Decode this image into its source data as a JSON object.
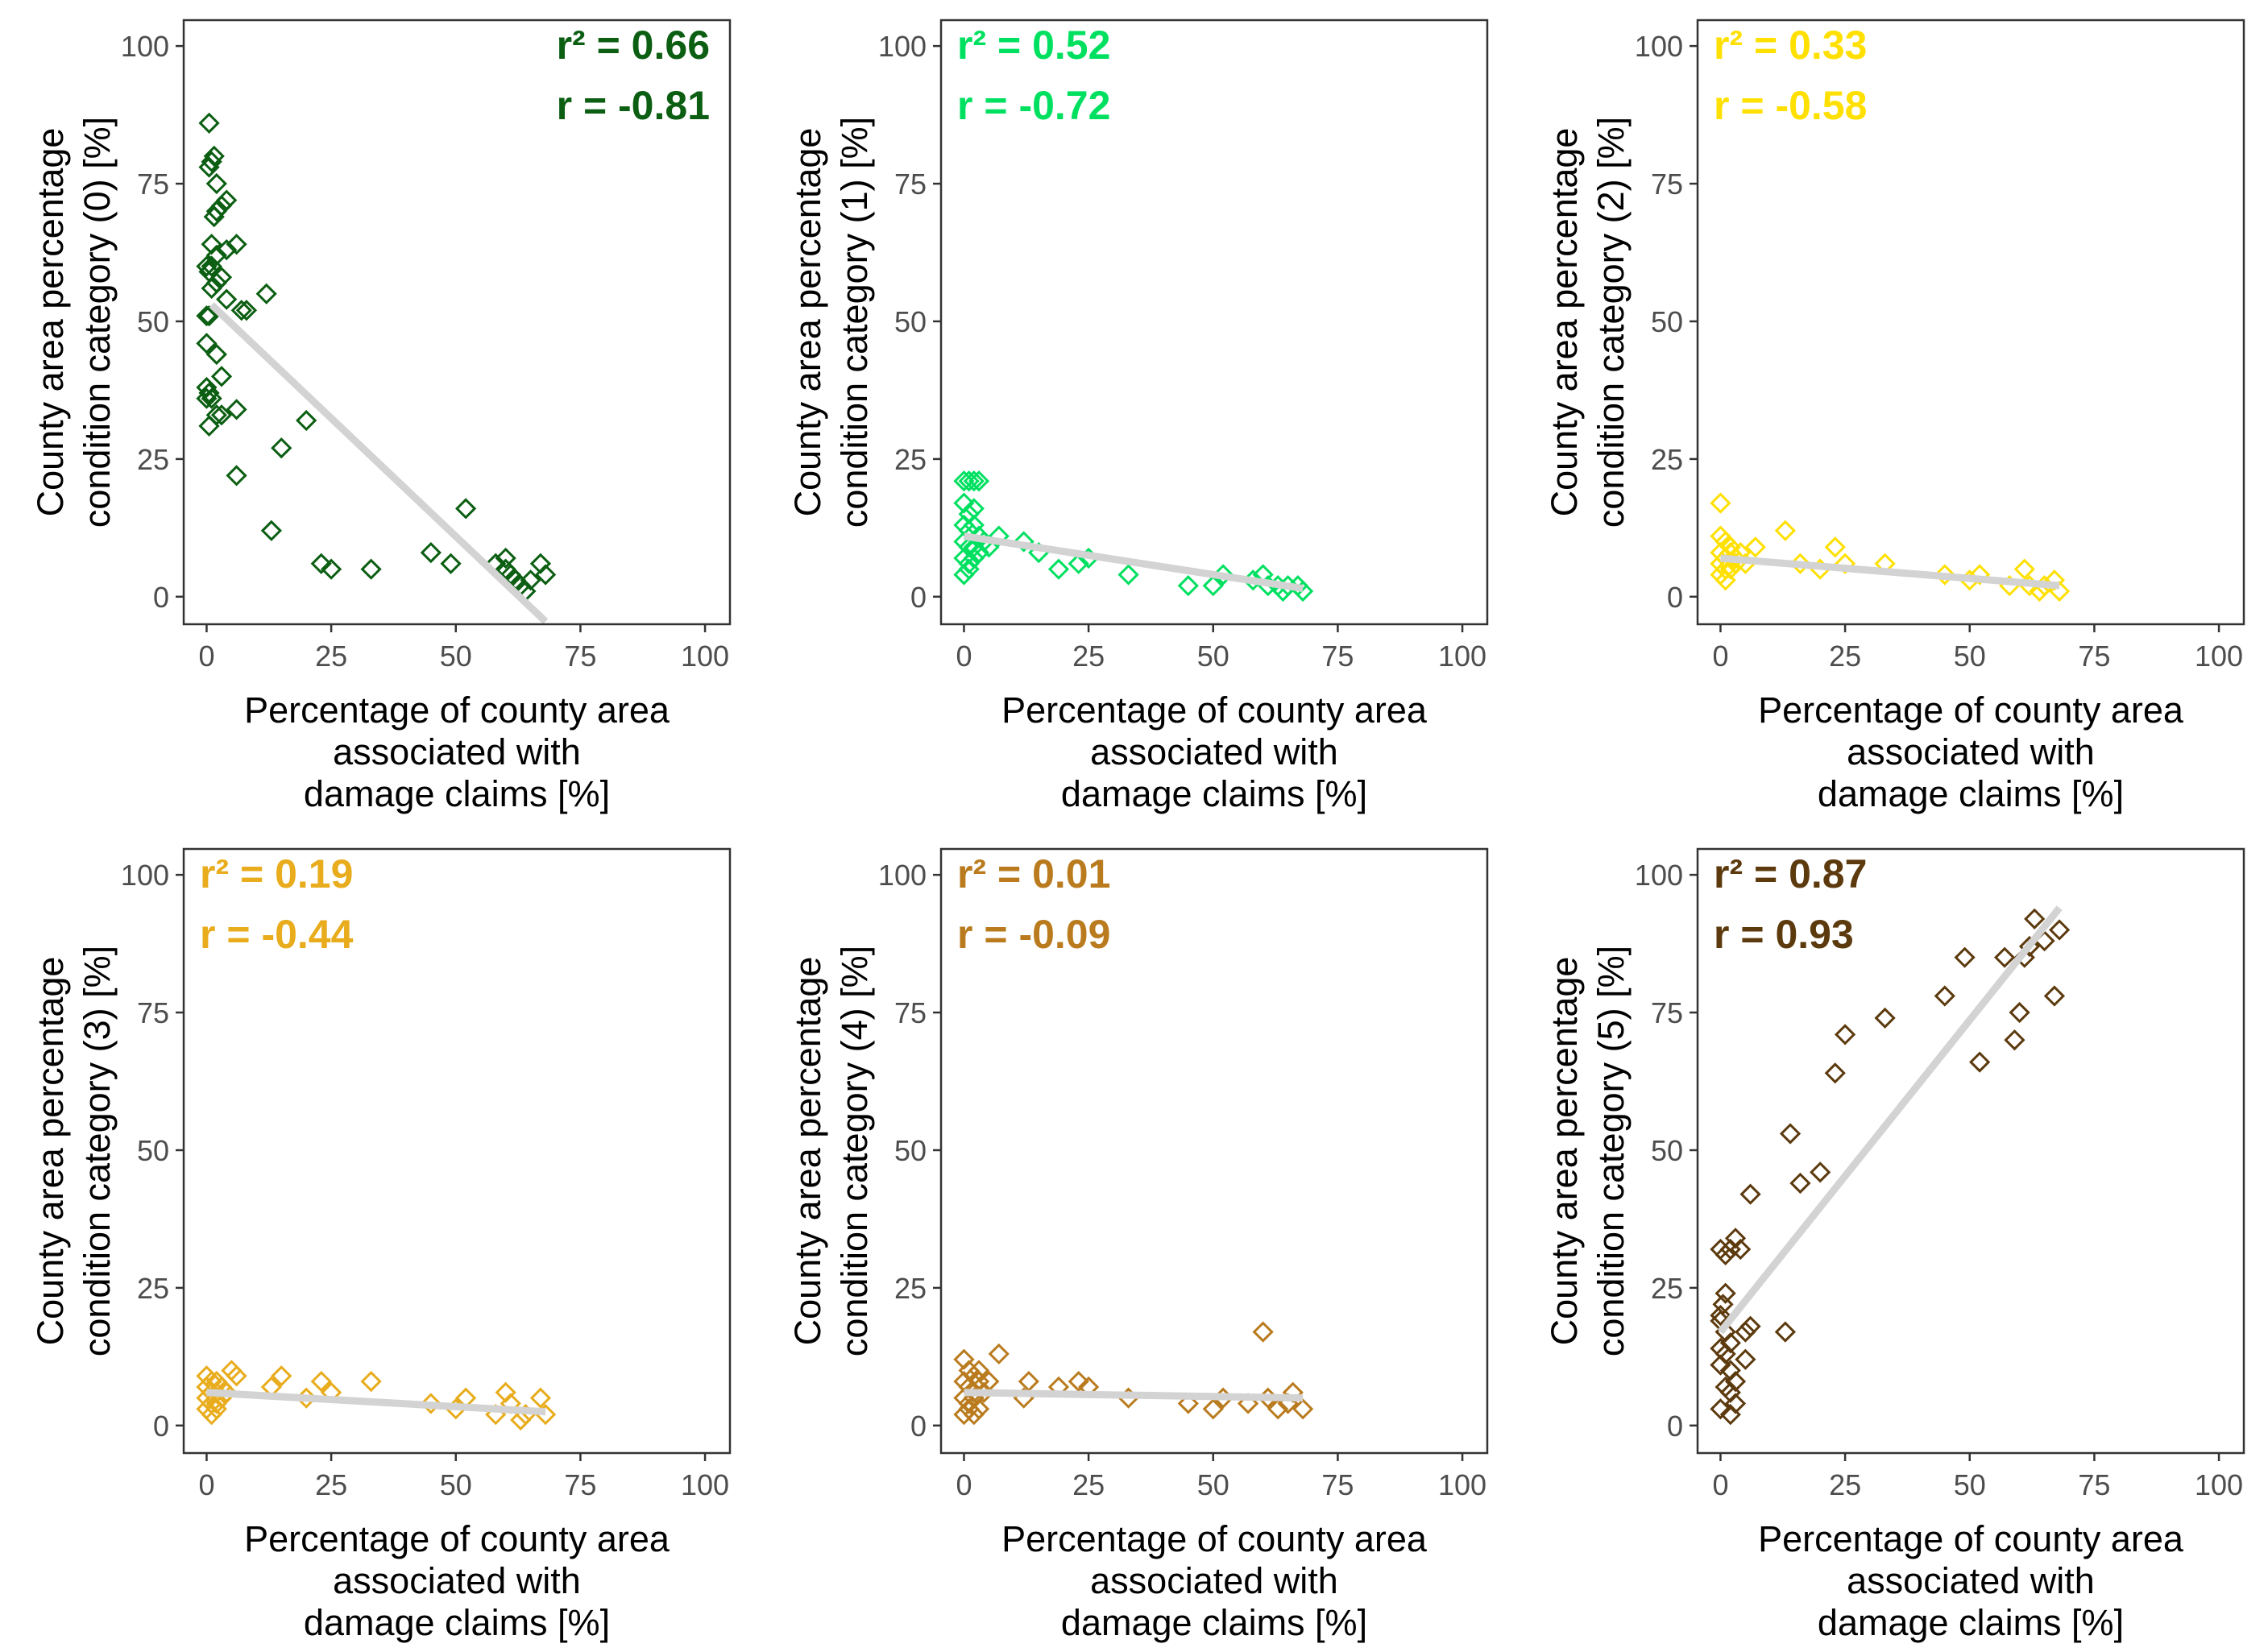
{
  "chart_data": [
    {
      "type": "scatter",
      "color": "#0b5e12",
      "xlabel": [
        "Percentage of county area",
        "associated with",
        "damage claims [%]"
      ],
      "ylabel": [
        "County area percentage",
        "condition category (0) [%]"
      ],
      "xticks": [
        "0",
        "25",
        "50",
        "75",
        "100"
      ],
      "yticks": [
        "0",
        "25",
        "50",
        "75",
        "100"
      ],
      "xlim": [
        -4.6,
        105
      ],
      "ylim": [
        -5,
        104.7
      ],
      "annotation": {
        "r2": "r² = 0.66",
        "r": "r = -0.81",
        "align": "right"
      },
      "fit": [
        [
          1,
          53
        ],
        [
          68,
          -4.5
        ]
      ],
      "points": [
        [
          0.5,
          86
        ],
        [
          0.5,
          78
        ],
        [
          1,
          79
        ],
        [
          1.5,
          80
        ],
        [
          2,
          75
        ],
        [
          4,
          72
        ],
        [
          1.5,
          69
        ],
        [
          2,
          70
        ],
        [
          3,
          71
        ],
        [
          6,
          64
        ],
        [
          1,
          64
        ],
        [
          2,
          62
        ],
        [
          4,
          63
        ],
        [
          0,
          60
        ],
        [
          0.5,
          59
        ],
        [
          1,
          60
        ],
        [
          3,
          58
        ],
        [
          2,
          57
        ],
        [
          7,
          52
        ],
        [
          8,
          52
        ],
        [
          0,
          51
        ],
        [
          0.5,
          51
        ],
        [
          12,
          55
        ],
        [
          1,
          56
        ],
        [
          4,
          54
        ],
        [
          0,
          46
        ],
        [
          2,
          44
        ],
        [
          3,
          40
        ],
        [
          0,
          38
        ],
        [
          0.5,
          37
        ],
        [
          1,
          36
        ],
        [
          0,
          36
        ],
        [
          6,
          34
        ],
        [
          2,
          33
        ],
        [
          3,
          33
        ],
        [
          0.5,
          31
        ],
        [
          6,
          22
        ],
        [
          20,
          32
        ],
        [
          15,
          27
        ],
        [
          13,
          12
        ],
        [
          23,
          6
        ],
        [
          25,
          5
        ],
        [
          33,
          5
        ],
        [
          45,
          8
        ],
        [
          52,
          16
        ],
        [
          49,
          6
        ],
        [
          58,
          6
        ],
        [
          60,
          7
        ],
        [
          61,
          4
        ],
        [
          62,
          3
        ],
        [
          63,
          2
        ],
        [
          64,
          1
        ],
        [
          65,
          3
        ],
        [
          67,
          6
        ],
        [
          68,
          4
        ],
        [
          60,
          5
        ]
      ]
    },
    {
      "type": "scatter",
      "color": "#00e060",
      "xlabel": [
        "Percentage of county area",
        "associated with",
        "damage claims [%]"
      ],
      "ylabel": [
        "County area percentage",
        "condition category (1) [%]"
      ],
      "xticks": [
        "0",
        "25",
        "50",
        "75",
        "100"
      ],
      "yticks": [
        "0",
        "25",
        "50",
        "75",
        "100"
      ],
      "xlim": [
        -4.6,
        105
      ],
      "ylim": [
        -5,
        104.7
      ],
      "annotation": {
        "r2": "r² = 0.52",
        "r": "r = -0.72",
        "align": "left"
      },
      "fit": [
        [
          0,
          11
        ],
        [
          68,
          1.5
        ]
      ],
      "points": [
        [
          0,
          21
        ],
        [
          1,
          21
        ],
        [
          2,
          21
        ],
        [
          3,
          21
        ],
        [
          0,
          17
        ],
        [
          1,
          15
        ],
        [
          2,
          16
        ],
        [
          0,
          13
        ],
        [
          1,
          12
        ],
        [
          2,
          13
        ],
        [
          3,
          11
        ],
        [
          0,
          10
        ],
        [
          1,
          9
        ],
        [
          2,
          9
        ],
        [
          3,
          8
        ],
        [
          0,
          7
        ],
        [
          1,
          6
        ],
        [
          2,
          7
        ],
        [
          0,
          4
        ],
        [
          1,
          5
        ],
        [
          4,
          10
        ],
        [
          5,
          9
        ],
        [
          7,
          11
        ],
        [
          12,
          10
        ],
        [
          15,
          8
        ],
        [
          19,
          5
        ],
        [
          23,
          6
        ],
        [
          25,
          7
        ],
        [
          33,
          4
        ],
        [
          45,
          2
        ],
        [
          50,
          2
        ],
        [
          52,
          4
        ],
        [
          58,
          3
        ],
        [
          60,
          4
        ],
        [
          61,
          2
        ],
        [
          63,
          2
        ],
        [
          64,
          1
        ],
        [
          65,
          2
        ],
        [
          67,
          2
        ],
        [
          68,
          1
        ]
      ]
    },
    {
      "type": "scatter",
      "color": "#ffe000",
      "xlabel": [
        "Percentage of county area",
        "associated with",
        "damage claims [%]"
      ],
      "ylabel": [
        "County area percentage",
        "condition category (2) [%]"
      ],
      "xticks": [
        "0",
        "25",
        "50",
        "75",
        "100"
      ],
      "yticks": [
        "0",
        "25",
        "50",
        "75",
        "100"
      ],
      "xlim": [
        -4.6,
        105
      ],
      "ylim": [
        -5,
        104.7
      ],
      "annotation": {
        "r2": "r² = 0.33",
        "r": "r = -0.58",
        "align": "left"
      },
      "fit": [
        [
          0,
          7
        ],
        [
          68,
          2
        ]
      ],
      "points": [
        [
          0,
          17
        ],
        [
          0,
          11
        ],
        [
          1,
          10
        ],
        [
          2,
          9
        ],
        [
          0,
          8
        ],
        [
          1,
          7
        ],
        [
          2,
          8
        ],
        [
          3,
          7
        ],
        [
          0,
          6
        ],
        [
          1,
          5
        ],
        [
          2,
          5
        ],
        [
          0,
          4
        ],
        [
          1,
          3
        ],
        [
          3,
          6
        ],
        [
          4,
          8
        ],
        [
          5,
          6
        ],
        [
          7,
          9
        ],
        [
          13,
          12
        ],
        [
          16,
          6
        ],
        [
          20,
          5
        ],
        [
          23,
          9
        ],
        [
          25,
          6
        ],
        [
          33,
          6
        ],
        [
          45,
          4
        ],
        [
          50,
          3
        ],
        [
          52,
          4
        ],
        [
          58,
          2
        ],
        [
          61,
          5
        ],
        [
          62,
          2
        ],
        [
          64,
          1
        ],
        [
          65,
          2
        ],
        [
          67,
          3
        ],
        [
          68,
          1
        ]
      ]
    },
    {
      "type": "scatter",
      "color": "#e8ac1c",
      "xlabel": [
        "Percentage of county area",
        "associated with",
        "damage claims [%]"
      ],
      "ylabel": [
        "County area percentage",
        "condition category (3) [%]"
      ],
      "xticks": [
        "0",
        "25",
        "50",
        "75",
        "100"
      ],
      "yticks": [
        "0",
        "25",
        "50",
        "75",
        "100"
      ],
      "xlim": [
        -4.6,
        105
      ],
      "ylim": [
        -5,
        104.7
      ],
      "annotation": {
        "r2": "r² = 0.19",
        "r": "r = -0.44",
        "align": "left"
      },
      "fit": [
        [
          0,
          6
        ],
        [
          68,
          2.5
        ]
      ],
      "points": [
        [
          0,
          9
        ],
        [
          1,
          8
        ],
        [
          2,
          8
        ],
        [
          0,
          7
        ],
        [
          1,
          6
        ],
        [
          2,
          6
        ],
        [
          3,
          7
        ],
        [
          0,
          5
        ],
        [
          1,
          4
        ],
        [
          2,
          4
        ],
        [
          3,
          5
        ],
        [
          0,
          3
        ],
        [
          1,
          2
        ],
        [
          2,
          3
        ],
        [
          4,
          6
        ],
        [
          5,
          10
        ],
        [
          6,
          9
        ],
        [
          13,
          7
        ],
        [
          15,
          9
        ],
        [
          20,
          5
        ],
        [
          23,
          8
        ],
        [
          25,
          6
        ],
        [
          33,
          8
        ],
        [
          45,
          4
        ],
        [
          50,
          3
        ],
        [
          52,
          5
        ],
        [
          58,
          2
        ],
        [
          60,
          6
        ],
        [
          61,
          4
        ],
        [
          63,
          1
        ],
        [
          64,
          2
        ],
        [
          67,
          5
        ],
        [
          68,
          2
        ]
      ]
    },
    {
      "type": "scatter",
      "color": "#b97b1e",
      "xlabel": [
        "Percentage of county area",
        "associated with",
        "damage claims [%]"
      ],
      "ylabel": [
        "County area percentage",
        "condition category (4) [%]"
      ],
      "xticks": [
        "0",
        "25",
        "50",
        "75",
        "100"
      ],
      "yticks": [
        "0",
        "25",
        "50",
        "75",
        "100"
      ],
      "xlim": [
        -4.6,
        105
      ],
      "ylim": [
        -5,
        104.7
      ],
      "annotation": {
        "r2": "r² = 0.01",
        "r": "r = -0.09",
        "align": "left"
      },
      "fit": [
        [
          0,
          6
        ],
        [
          68,
          5
        ]
      ],
      "points": [
        [
          0,
          12
        ],
        [
          1,
          10
        ],
        [
          2,
          9
        ],
        [
          3,
          10
        ],
        [
          0,
          8
        ],
        [
          1,
          7
        ],
        [
          2,
          6
        ],
        [
          3,
          8
        ],
        [
          0,
          5
        ],
        [
          1,
          4
        ],
        [
          2,
          5
        ],
        [
          3,
          3
        ],
        [
          0,
          2
        ],
        [
          1,
          3
        ],
        [
          2,
          2
        ],
        [
          4,
          6
        ],
        [
          5,
          8
        ],
        [
          7,
          13
        ],
        [
          12,
          5
        ],
        [
          13,
          8
        ],
        [
          19,
          7
        ],
        [
          23,
          8
        ],
        [
          25,
          7
        ],
        [
          33,
          5
        ],
        [
          45,
          4
        ],
        [
          50,
          3
        ],
        [
          52,
          5
        ],
        [
          57,
          4
        ],
        [
          60,
          17
        ],
        [
          61,
          5
        ],
        [
          63,
          3
        ],
        [
          65,
          4
        ],
        [
          66,
          6
        ],
        [
          68,
          3
        ]
      ]
    },
    {
      "type": "scatter",
      "color": "#5c3a0e",
      "xlabel": [
        "Percentage of county area",
        "associated with",
        "damage claims [%]"
      ],
      "ylabel": [
        "County area percentage",
        "condition category (5) [%]"
      ],
      "xticks": [
        "0",
        "25",
        "50",
        "75",
        "100"
      ],
      "yticks": [
        "0",
        "25",
        "50",
        "75",
        "100"
      ],
      "xlim": [
        -4.6,
        105
      ],
      "ylim": [
        -5,
        104.7
      ],
      "annotation": {
        "r2": "r² = 0.87",
        "r": "r = 0.93",
        "align": "left"
      },
      "fit": [
        [
          0,
          17
        ],
        [
          68,
          94
        ]
      ],
      "points": [
        [
          0,
          32
        ],
        [
          1,
          31
        ],
        [
          2,
          32
        ],
        [
          3,
          34
        ],
        [
          1,
          24
        ],
        [
          0.5,
          22
        ],
        [
          0,
          20
        ],
        [
          0,
          19
        ],
        [
          1,
          17
        ],
        [
          2,
          15
        ],
        [
          0,
          14
        ],
        [
          1,
          13
        ],
        [
          0,
          11
        ],
        [
          2,
          10
        ],
        [
          3,
          8
        ],
        [
          1,
          7
        ],
        [
          2,
          6
        ],
        [
          3,
          4
        ],
        [
          0,
          3
        ],
        [
          2,
          2
        ],
        [
          5,
          17
        ],
        [
          6,
          18
        ],
        [
          4,
          32
        ],
        [
          6,
          42
        ],
        [
          5,
          12
        ],
        [
          13,
          17
        ],
        [
          14,
          53
        ],
        [
          16,
          44
        ],
        [
          20,
          46
        ],
        [
          23,
          64
        ],
        [
          25,
          71
        ],
        [
          33,
          74
        ],
        [
          45,
          78
        ],
        [
          49,
          85
        ],
        [
          52,
          66
        ],
        [
          57,
          85
        ],
        [
          59,
          70
        ],
        [
          60,
          75
        ],
        [
          61,
          85
        ],
        [
          63,
          92
        ],
        [
          65,
          88
        ],
        [
          67,
          78
        ],
        [
          68,
          90
        ],
        [
          62,
          87
        ]
      ]
    }
  ]
}
